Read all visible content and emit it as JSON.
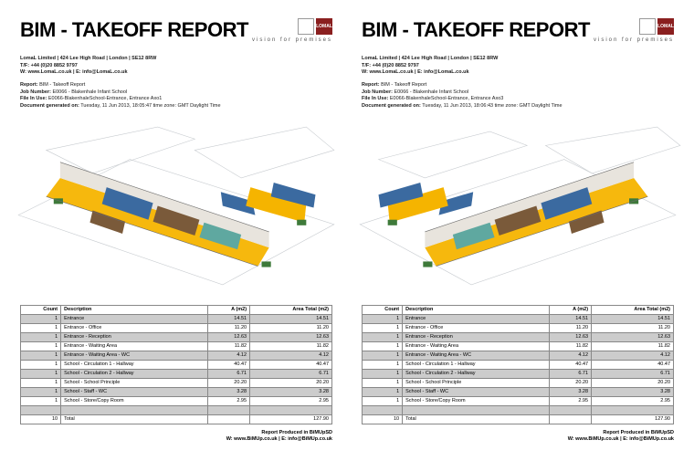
{
  "pages": [
    {
      "title": "BIM - TAKEOFF REPORT",
      "tagline": "vision for premises",
      "logo_text_left": "",
      "logo_text_right": "LOMAL",
      "company_line": "LomaL Limited | 424 Lee High Road | London | SE12 8RW",
      "tf_line": "T/F: +44 (0)20 8852 9797",
      "web_line_w": "W: www.LomaL.co.uk | ",
      "web_line_e": "E: info@LomaL.co.uk",
      "report_label": "Report:",
      "report_value": "BIM - Takeoff Report",
      "job_label": "Job Number:",
      "job_value": "E0066 - Blakenhale Infant School",
      "file_label": "File In Use:",
      "file_value": "E0066-BlakenhaleSchool-Entrance, Entrance Axo1",
      "gen_label": "Document generated on:",
      "gen_value": "Tuesday, 11 Jun 2013, 18:05:47 time zone: GMT Daylight Time",
      "footer_title": "Report Produced in BiMUpSD",
      "footer_w": "W: www.BiMUp.co.uk | ",
      "footer_e": "E: info@BiMUp.co.uk"
    },
    {
      "title": "BIM - TAKEOFF REPORT",
      "tagline": "vision for premises",
      "logo_text_left": "",
      "logo_text_right": "LOMAL",
      "company_line": "LomaL Limited | 424 Lee High Road | London | SE12 8RW",
      "tf_line": "T/F: +44 (0)20 8852 9797",
      "web_line_w": "W: www.LomaL.co.uk | ",
      "web_line_e": "E: info@LomaL.co.uk",
      "report_label": "Report:",
      "report_value": "BIM - Takeoff Report",
      "job_label": "Job Number:",
      "job_value": "E0066 - Blakenhale Infant School",
      "file_label": "File In Use:",
      "file_value": "E0066-BlakenhaleSchool-Entrance, Entrance Axo3",
      "gen_label": "Document generated on:",
      "gen_value": "Tuesday, 11 Jun 2013, 18:06:43 time zone: GMT Daylight Time",
      "footer_title": "Report Produced in BiMUpSD",
      "footer_w": "W: www.BiMUp.co.uk | ",
      "footer_e": "E: info@BiMUp.co.uk"
    }
  ],
  "table": {
    "headers": [
      "Count",
      "Description",
      "A (m2)",
      "Area Total (m2)"
    ],
    "rows": [
      {
        "count": "1",
        "desc": "Entrance",
        "a": "14.51",
        "t": "14.51"
      },
      {
        "count": "1",
        "desc": "Entrance - Office",
        "a": "11.20",
        "t": "11.20"
      },
      {
        "count": "1",
        "desc": "Entrance - Reception",
        "a": "12.63",
        "t": "12.63"
      },
      {
        "count": "1",
        "desc": "Entrance - Waiting Area",
        "a": "11.82",
        "t": "11.82"
      },
      {
        "count": "1",
        "desc": "Entrance - Waiting Area - WC",
        "a": "4.12",
        "t": "4.12"
      },
      {
        "count": "1",
        "desc": "School - Circulation 1 - Hallway",
        "a": "40.47",
        "t": "40.47"
      },
      {
        "count": "1",
        "desc": "School - Circulation 2 - Hallway",
        "a": "6.71",
        "t": "6.71"
      },
      {
        "count": "1",
        "desc": "School - School Principle",
        "a": "20.20",
        "t": "20.20"
      },
      {
        "count": "1",
        "desc": "School - Staff - WC",
        "a": "3.28",
        "t": "3.28"
      },
      {
        "count": "1",
        "desc": "School - Store/Copy Room",
        "a": "2.95",
        "t": "2.95"
      }
    ],
    "total_count": "10",
    "total_label": "Total",
    "total_value": "127.90",
    "alt_bg": "#cccccc",
    "border_color": "#888888"
  },
  "drawing": {
    "bg": "#ffffff",
    "outline": "#9aa0a6",
    "floor_main": "#f5b400",
    "floor_blue": "#3b6aa0",
    "floor_brown": "#7a5a3a",
    "floor_teal": "#5fa8a0",
    "wall": "#d8d4cf",
    "green": "#3e7a3a"
  }
}
